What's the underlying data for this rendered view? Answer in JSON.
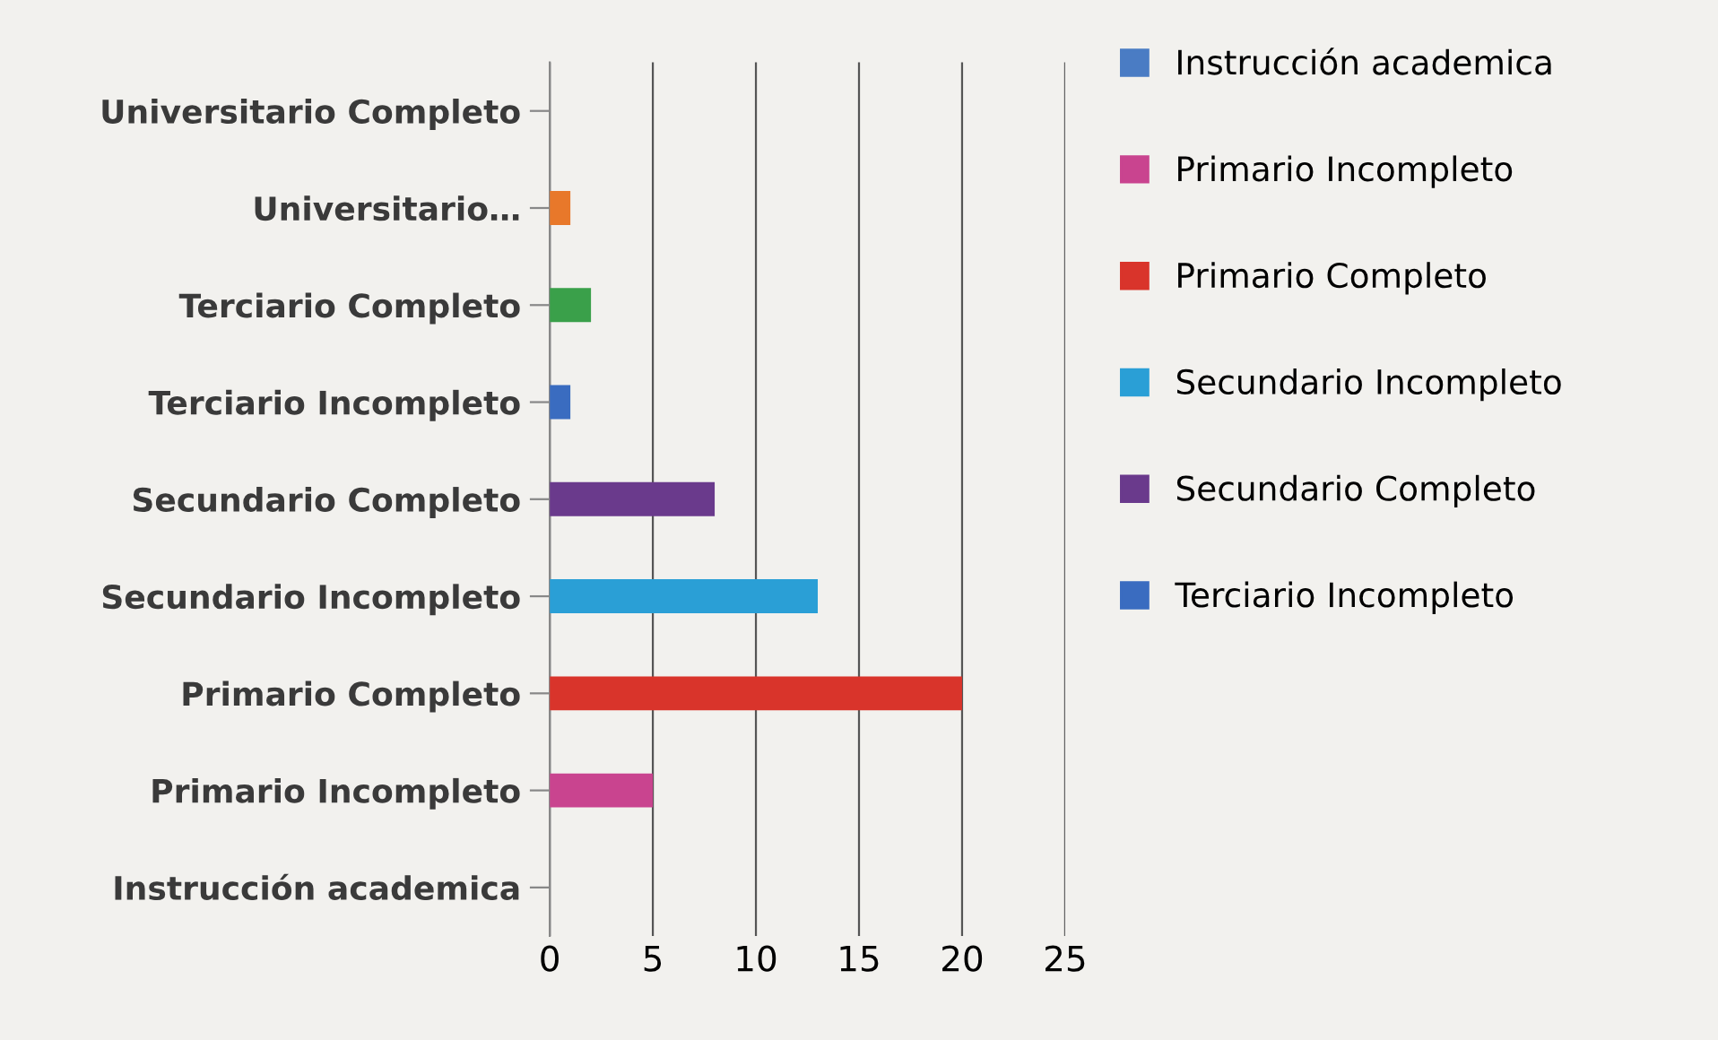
{
  "chart_data": {
    "type": "bar",
    "orientation": "horizontal",
    "categories": [
      "Universitario Completo",
      "Universitario…",
      "Terciario Completo",
      "Terciario Incompleto",
      "Secundario Completo",
      "Secundario Incompleto",
      "Primario Completo",
      "Primario Incompleto",
      "Instrucción academica"
    ],
    "series": [
      {
        "name": "Instrucción academica",
        "color": "#4a7cc4",
        "values": [
          null,
          null,
          null,
          null,
          null,
          null,
          null,
          null,
          0
        ]
      },
      {
        "name": "Primario Incompleto",
        "color": "#c9448f",
        "values": [
          null,
          null,
          null,
          null,
          null,
          null,
          null,
          5,
          null
        ]
      },
      {
        "name": "Primario Completo",
        "color": "#d9342b",
        "values": [
          null,
          null,
          null,
          null,
          null,
          null,
          20,
          null,
          null
        ]
      },
      {
        "name": "Secundario Incompleto",
        "color": "#2a9fd6",
        "values": [
          null,
          null,
          null,
          null,
          null,
          13,
          null,
          null,
          null
        ]
      },
      {
        "name": "Secundario Completo",
        "color": "#6a3a8c",
        "values": [
          null,
          null,
          null,
          null,
          8,
          null,
          null,
          null,
          null
        ]
      },
      {
        "name": "Terciario Incompleto",
        "color": "#3a6cc0",
        "values": [
          null,
          null,
          null,
          1,
          null,
          null,
          null,
          null,
          null
        ]
      },
      {
        "color": "#3aa04a",
        "values": [
          null,
          null,
          2,
          null,
          null,
          null,
          null,
          null,
          null
        ]
      },
      {
        "color": "#e8782a",
        "values": [
          null,
          1,
          null,
          null,
          null,
          null,
          null,
          null,
          null
        ]
      },
      {
        "color": "#4a7cc4",
        "values": [
          0,
          null,
          null,
          null,
          null,
          null,
          null,
          null,
          null
        ]
      }
    ],
    "xlim": [
      0,
      25
    ],
    "xticks": [
      0,
      5,
      10,
      15,
      20,
      25
    ],
    "grid": "x",
    "legend": "right"
  }
}
